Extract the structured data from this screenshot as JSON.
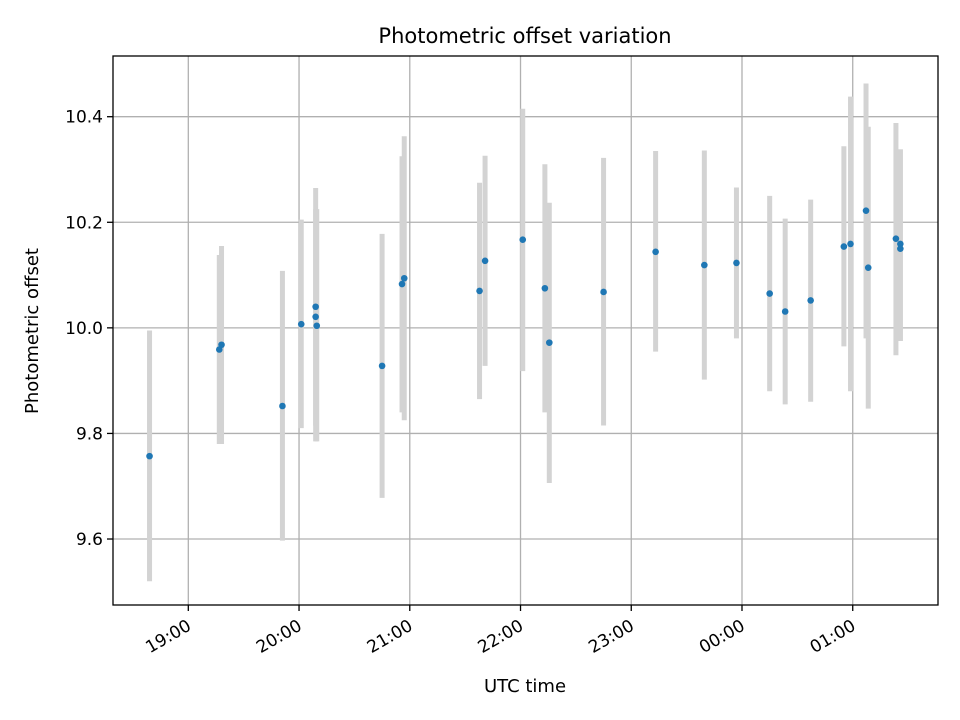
{
  "chart_data": {
    "type": "scatter",
    "title": "Photometric offset variation",
    "xlabel": "UTC time",
    "ylabel": "Photometric offset",
    "x_unit": "UTC hours (values past 24 are after midnight)",
    "xlim": [
      18.32,
      25.77
    ],
    "ylim": [
      9.475,
      10.515
    ],
    "grid": true,
    "x_ticks": [
      {
        "value": 19,
        "label": "19:00"
      },
      {
        "value": 20,
        "label": "20:00"
      },
      {
        "value": 21,
        "label": "21:00"
      },
      {
        "value": 22,
        "label": "22:00"
      },
      {
        "value": 23,
        "label": "23:00"
      },
      {
        "value": 24,
        "label": "00:00"
      },
      {
        "value": 25,
        "label": "01:00"
      }
    ],
    "y_ticks": [
      {
        "value": 9.6,
        "label": "9.6"
      },
      {
        "value": 9.8,
        "label": "9.8"
      },
      {
        "value": 10.0,
        "label": "10.0"
      },
      {
        "value": 10.2,
        "label": "10.2"
      },
      {
        "value": 10.4,
        "label": "10.4"
      }
    ],
    "colors": {
      "marker": "#1f77b4",
      "errorbar": "#d3d3d3",
      "grid": "#b0b0b0"
    },
    "series": [
      {
        "points": [
          {
            "x": 18.65,
            "y": 9.757,
            "ylo": 9.52,
            "yhi": 9.995
          },
          {
            "x": 19.28,
            "y": 9.959,
            "ylo": 9.78,
            "yhi": 10.138
          },
          {
            "x": 19.3,
            "y": 9.968,
            "ylo": 9.78,
            "yhi": 10.155
          },
          {
            "x": 19.85,
            "y": 9.852,
            "ylo": 9.597,
            "yhi": 10.108
          },
          {
            "x": 20.02,
            "y": 10.007,
            "ylo": 9.81,
            "yhi": 10.205
          },
          {
            "x": 20.15,
            "y": 10.04,
            "ylo": 9.815,
            "yhi": 10.265
          },
          {
            "x": 20.15,
            "y": 10.021,
            "ylo": 9.785,
            "yhi": 10.225
          },
          {
            "x": 20.16,
            "y": 10.004,
            "ylo": 9.785,
            "yhi": 10.225
          },
          {
            "x": 20.75,
            "y": 9.928,
            "ylo": 9.678,
            "yhi": 10.178
          },
          {
            "x": 20.93,
            "y": 10.083,
            "ylo": 9.84,
            "yhi": 10.325
          },
          {
            "x": 20.95,
            "y": 10.094,
            "ylo": 9.825,
            "yhi": 10.363
          },
          {
            "x": 21.63,
            "y": 10.07,
            "ylo": 9.865,
            "yhi": 10.275
          },
          {
            "x": 21.68,
            "y": 10.127,
            "ylo": 9.928,
            "yhi": 10.326
          },
          {
            "x": 22.02,
            "y": 10.167,
            "ylo": 9.918,
            "yhi": 10.415
          },
          {
            "x": 22.22,
            "y": 10.075,
            "ylo": 9.84,
            "yhi": 10.31
          },
          {
            "x": 22.26,
            "y": 9.972,
            "ylo": 9.706,
            "yhi": 10.237
          },
          {
            "x": 22.75,
            "y": 10.068,
            "ylo": 9.815,
            "yhi": 10.322
          },
          {
            "x": 23.22,
            "y": 10.144,
            "ylo": 9.955,
            "yhi": 10.335
          },
          {
            "x": 23.66,
            "y": 10.119,
            "ylo": 9.902,
            "yhi": 10.336
          },
          {
            "x": 23.95,
            "y": 10.123,
            "ylo": 9.98,
            "yhi": 10.266
          },
          {
            "x": 24.25,
            "y": 10.065,
            "ylo": 9.88,
            "yhi": 10.25
          },
          {
            "x": 24.39,
            "y": 10.031,
            "ylo": 9.855,
            "yhi": 10.207
          },
          {
            "x": 24.62,
            "y": 10.052,
            "ylo": 9.86,
            "yhi": 10.243
          },
          {
            "x": 24.92,
            "y": 10.154,
            "ylo": 9.965,
            "yhi": 10.344
          },
          {
            "x": 24.98,
            "y": 10.159,
            "ylo": 9.88,
            "yhi": 10.438
          },
          {
            "x": 25.12,
            "y": 10.222,
            "ylo": 9.98,
            "yhi": 10.463
          },
          {
            "x": 25.14,
            "y": 10.114,
            "ylo": 9.847,
            "yhi": 10.381
          },
          {
            "x": 25.39,
            "y": 10.169,
            "ylo": 9.948,
            "yhi": 10.388
          },
          {
            "x": 25.43,
            "y": 10.159,
            "ylo": 9.975,
            "yhi": 10.338
          },
          {
            "x": 25.43,
            "y": 10.15,
            "ylo": 9.975,
            "yhi": 10.338
          }
        ]
      }
    ]
  }
}
